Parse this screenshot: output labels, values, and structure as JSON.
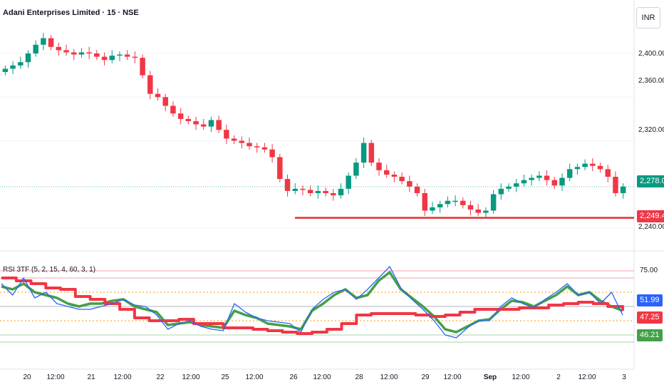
{
  "header": {
    "title": "Adani Enterprises Limited · 15 · NSE",
    "currency": "INR"
  },
  "indicator": {
    "label": "RSI 3TF (5, 2, 15, 4, 60, 3, 1)"
  },
  "price_axis": {
    "ticks": [
      "2,400.00",
      "2,360.00",
      "2,320.00",
      "2,240.00"
    ]
  },
  "rsi_axis": {
    "ticks": [
      "75.00"
    ]
  },
  "price_tags": {
    "last": "2,278.00",
    "support": "2,249.40"
  },
  "rsi_tags": {
    "fast": "51.99",
    "slow": "47.25",
    "mid": "46.21"
  },
  "x_axis": {
    "ticks": [
      "20",
      "12:00",
      "21",
      "12:00",
      "22",
      "12:00",
      "25",
      "12:00",
      "26",
      "12:00",
      "28",
      "12:00",
      "29",
      "12:00",
      "Sep",
      "12:00",
      "2",
      "12:00",
      "3"
    ]
  },
  "colors": {
    "up": "#089981",
    "down": "#f23645",
    "support": "#e03131",
    "rsi_blue": "#2962ff",
    "rsi_green": "#43a047",
    "rsi_red": "#f23645",
    "level": "#ff9800"
  },
  "chart_data": [
    {
      "type": "candlestick",
      "title": "Adani Enterprises Limited · 15 · NSE",
      "x": [
        "20",
        "12:00",
        "21",
        "12:00",
        "22",
        "12:00",
        "25",
        "12:00",
        "26",
        "12:00",
        "28",
        "12:00",
        "29",
        "12:00",
        "Sep",
        "12:00",
        "2",
        "12:00",
        "3"
      ],
      "close_path": [
        2386,
        2389,
        2392,
        2400,
        2408,
        2414,
        2406,
        2403,
        2401,
        2399,
        2401,
        2400,
        2397,
        2394,
        2398,
        2399,
        2397,
        2396,
        2380,
        2363,
        2360,
        2352,
        2345,
        2340,
        2338,
        2335,
        2333,
        2339,
        2330,
        2322,
        2320,
        2318,
        2315,
        2314,
        2312,
        2305,
        2285,
        2274,
        2276,
        2275,
        2272,
        2274,
        2272,
        2270,
        2276,
        2288,
        2300,
        2318,
        2300,
        2293,
        2289,
        2287,
        2283,
        2278,
        2272,
        2256,
        2259,
        2262,
        2265,
        2265,
        2261,
        2257,
        2254,
        2256,
        2271,
        2276,
        2278,
        2281,
        2284,
        2286,
        2288,
        2284,
        2279,
        2286,
        2294,
        2296,
        2299,
        2297,
        2294,
        2287,
        2272,
        2278
      ],
      "horizontal_line": 2249.4,
      "last_price": 2278.0,
      "y_ticks": [
        2400,
        2360,
        2320,
        2240
      ]
    },
    {
      "type": "line",
      "title": "RSI 3TF (5, 2, 15, 4, 60, 3, 1)",
      "levels": [
        75,
        70,
        60,
        40,
        30,
        25
      ],
      "series": [
        {
          "name": "",
          "values": [
            66,
            58,
            70,
            56,
            60,
            52,
            50,
            48,
            48,
            50,
            52,
            55,
            51,
            50,
            44,
            34,
            38,
            40,
            36,
            34,
            33,
            52,
            46,
            42,
            40,
            39,
            38,
            32,
            48,
            55,
            60,
            62,
            55,
            62,
            70,
            78,
            63,
            55,
            48,
            40,
            30,
            28,
            35,
            40,
            40,
            50,
            56,
            52,
            49,
            55,
            60,
            66,
            58,
            60,
            52,
            60,
            44
          ]
        },
        {
          "name": "",
          "values": [
            64,
            62,
            66,
            60,
            58,
            56,
            52,
            50,
            52,
            52,
            54,
            55,
            50,
            48,
            46,
            37,
            38,
            39,
            37,
            36,
            35,
            47,
            44,
            42,
            38,
            37,
            36,
            34,
            47,
            52,
            58,
            62,
            56,
            58,
            68,
            74,
            62,
            56,
            50,
            43,
            34,
            32,
            36,
            40,
            41,
            48,
            54,
            53,
            50,
            54,
            58,
            64,
            58,
            60,
            54,
            50,
            47
          ]
        },
        {
          "name": "",
          "values": [
            70,
            68,
            66,
            63,
            62,
            57,
            55,
            52,
            48,
            42,
            40,
            40,
            41,
            38,
            38,
            35,
            35,
            34,
            33,
            32,
            31,
            32,
            34,
            38,
            44,
            45,
            45,
            45,
            44,
            43,
            44,
            46,
            48,
            48,
            48,
            49,
            49,
            51,
            52,
            53,
            52,
            50,
            47
          ]
        }
      ],
      "last_values": [
        51.99,
        47.25,
        46.21
      ]
    }
  ]
}
